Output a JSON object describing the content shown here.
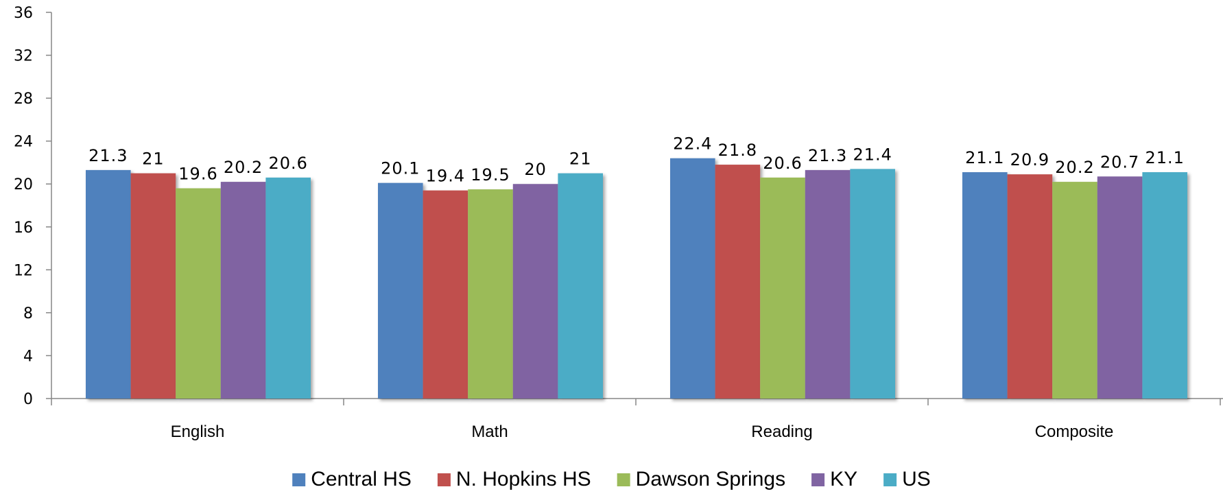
{
  "chart_data": {
    "type": "bar",
    "title": "",
    "xlabel": "",
    "ylabel": "",
    "categories": [
      "English",
      "Math",
      "Reading",
      "Composite"
    ],
    "ylim": [
      0,
      36
    ],
    "yticks": [
      0,
      4,
      8,
      12,
      16,
      20,
      24,
      28,
      32,
      36
    ],
    "grid": false,
    "legend_position": "bottom",
    "series": [
      {
        "name": "Central HS",
        "color": "#4F81BD",
        "values": [
          21.3,
          20.1,
          22.4,
          21.1
        ]
      },
      {
        "name": "N. Hopkins HS",
        "color": "#C0504D",
        "values": [
          21,
          19.4,
          21.8,
          20.9
        ]
      },
      {
        "name": "Dawson Springs",
        "color": "#9BBB59",
        "values": [
          19.6,
          19.5,
          20.6,
          20.2
        ]
      },
      {
        "name": "KY",
        "color": "#8064A2",
        "values": [
          20.2,
          20,
          21.3,
          20.7
        ]
      },
      {
        "name": "US",
        "color": "#4BACC6",
        "values": [
          20.6,
          21,
          21.4,
          21.1
        ]
      }
    ]
  }
}
